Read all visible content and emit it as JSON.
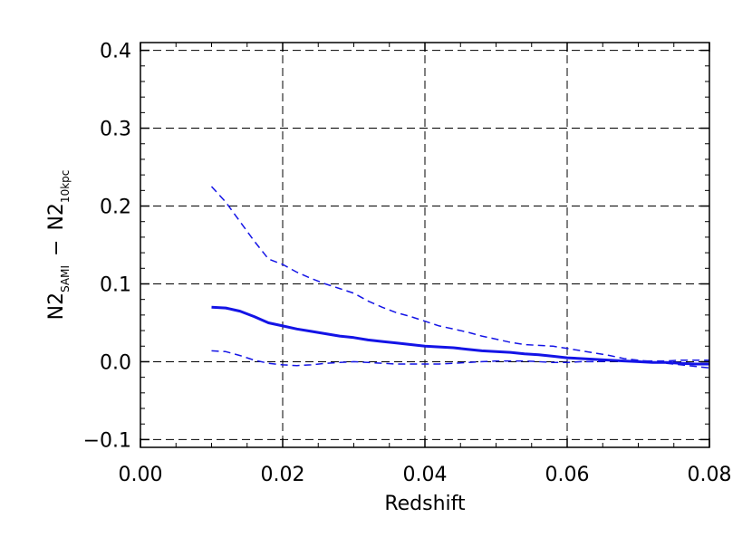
{
  "chart_data": {
    "type": "line",
    "title": "",
    "xlabel": "Redshift",
    "ylabel": {
      "base1": "N2",
      "sub1": "SAMI",
      "minus": "−",
      "base2": "N2",
      "sub2": "10kpc"
    },
    "xlim": [
      0.0,
      0.08
    ],
    "ylim": [
      -0.11,
      0.41
    ],
    "grid": true,
    "x_ticks": [
      0.0,
      0.02,
      0.04,
      0.06,
      0.08
    ],
    "x_tick_labels": [
      "0.00",
      "0.02",
      "0.04",
      "0.06",
      "0.08"
    ],
    "y_ticks": [
      -0.1,
      0.0,
      0.1,
      0.2,
      0.3,
      0.4
    ],
    "y_tick_labels": [
      "−0.1",
      "0.0",
      "0.1",
      "0.2",
      "0.3",
      "0.4"
    ],
    "color": "#1414e6",
    "series": [
      {
        "style": "solid",
        "x": [
          0.01,
          0.012,
          0.014,
          0.016,
          0.018,
          0.02,
          0.022,
          0.024,
          0.026,
          0.028,
          0.03,
          0.032,
          0.034,
          0.036,
          0.038,
          0.04,
          0.042,
          0.044,
          0.046,
          0.048,
          0.05,
          0.052,
          0.054,
          0.056,
          0.058,
          0.06,
          0.062,
          0.064,
          0.066,
          0.068,
          0.07,
          0.072,
          0.074,
          0.076,
          0.078,
          0.08
        ],
        "values": [
          0.07,
          0.069,
          0.065,
          0.058,
          0.05,
          0.046,
          0.042,
          0.039,
          0.036,
          0.033,
          0.031,
          0.028,
          0.026,
          0.024,
          0.022,
          0.02,
          0.019,
          0.018,
          0.016,
          0.014,
          0.013,
          0.012,
          0.01,
          0.009,
          0.007,
          0.005,
          0.004,
          0.003,
          0.002,
          0.001,
          0.0,
          -0.001,
          -0.001,
          -0.002,
          -0.003,
          -0.003
        ]
      },
      {
        "style": "dashed",
        "x": [
          0.01,
          0.012,
          0.014,
          0.016,
          0.018,
          0.02,
          0.022,
          0.024,
          0.026,
          0.028,
          0.03,
          0.032,
          0.034,
          0.036,
          0.038,
          0.04,
          0.042,
          0.044,
          0.046,
          0.048,
          0.05,
          0.052,
          0.054,
          0.056,
          0.058,
          0.06,
          0.062,
          0.064,
          0.066,
          0.068,
          0.07,
          0.072,
          0.074,
          0.076,
          0.078,
          0.08
        ],
        "values": [
          0.225,
          0.205,
          0.18,
          0.155,
          0.132,
          0.125,
          0.115,
          0.107,
          0.1,
          0.094,
          0.088,
          0.078,
          0.07,
          0.063,
          0.058,
          0.052,
          0.046,
          0.042,
          0.038,
          0.033,
          0.029,
          0.025,
          0.022,
          0.021,
          0.02,
          0.017,
          0.014,
          0.011,
          0.008,
          0.004,
          0.002,
          0.0,
          -0.002,
          -0.004,
          -0.006,
          -0.008
        ]
      },
      {
        "style": "dashed",
        "x": [
          0.01,
          0.012,
          0.014,
          0.016,
          0.018,
          0.02,
          0.022,
          0.024,
          0.026,
          0.028,
          0.03,
          0.032,
          0.034,
          0.036,
          0.038,
          0.04,
          0.042,
          0.044,
          0.046,
          0.048,
          0.05,
          0.052,
          0.054,
          0.056,
          0.058,
          0.06,
          0.062,
          0.064,
          0.066,
          0.068,
          0.07,
          0.072,
          0.074,
          0.076,
          0.078,
          0.08
        ],
        "values": [
          0.014,
          0.013,
          0.008,
          0.002,
          -0.002,
          -0.004,
          -0.005,
          -0.004,
          -0.002,
          -0.001,
          0.0,
          -0.001,
          -0.002,
          -0.003,
          -0.003,
          -0.003,
          -0.003,
          -0.002,
          -0.001,
          0.0,
          0.001,
          0.001,
          0.001,
          0.0,
          -0.001,
          -0.001,
          0.0,
          0.0,
          0.001,
          0.001,
          0.001,
          0.001,
          0.001,
          0.002,
          0.002,
          0.002
        ]
      }
    ]
  }
}
